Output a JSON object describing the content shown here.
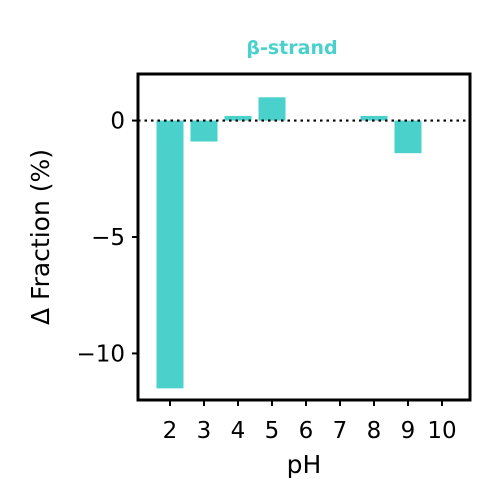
{
  "chart_data": {
    "type": "bar",
    "title": "β-strand",
    "xlabel": "pH",
    "ylabel": "Δ Fraction (%)",
    "categories": [
      "2",
      "3",
      "4",
      "5",
      "6",
      "7",
      "8",
      "9",
      "10"
    ],
    "values": [
      -11.5,
      -0.9,
      0.2,
      1.0,
      0,
      0,
      0.2,
      -1.4,
      0
    ],
    "ylim": [
      -12,
      2
    ],
    "yticks": [
      0,
      -5,
      -10
    ],
    "ytick_labels": [
      "0",
      "−5",
      "−10"
    ],
    "reference_line": {
      "y": 0,
      "style": "dotted",
      "color": "#000000"
    },
    "grid": false,
    "colors": {
      "bar": "#4ad1cc",
      "title": "#4ad1cc",
      "axes": "#000000"
    }
  }
}
